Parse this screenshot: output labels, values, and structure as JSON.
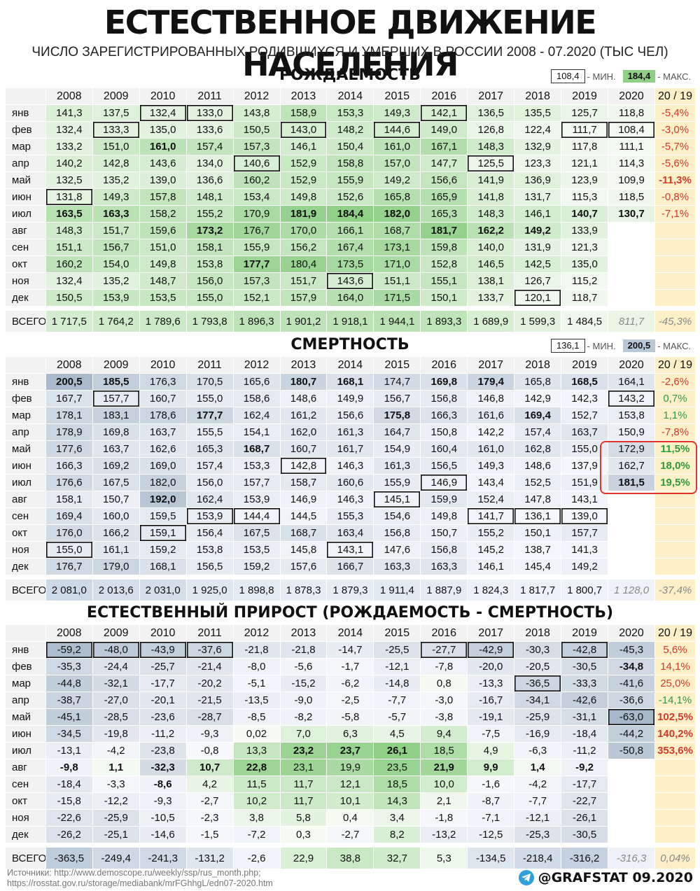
{
  "header": {
    "title": "ЕСТЕСТВЕННОЕ ДВИЖЕНИЕ НАСЕЛЕНИЯ",
    "subtitle": "ЧИСЛО ЗАРЕГИСТРИРОВАННЫХ РОДИВШИХСЯ И УМЕРШИХ В РОССИИ 2008 - 07.2020 (ТЫС ЧЕЛ)"
  },
  "footer": {
    "sources_1": "Источники: http://www.demoscope.ru/weekly/ssp/rus_month.php;",
    "sources_2": "https://rosstat.gov.ru/storage/mediabank/mrFGhhgL/edn07-2020.htm",
    "brand": "@GRAFSTAT 09.2020"
  },
  "colors": {
    "green_max": "#8fcf86",
    "blue_max": "#a9b9cb",
    "change_bg": "#fdf0c8",
    "negative": "#d23a2a",
    "positive": "#2e9a3c",
    "frame_red": "#e0352b"
  },
  "chart_data": [
    {
      "type": "table",
      "title": "РОЖДАЕМОСТЬ",
      "legend": {
        "min_value": "108,4",
        "min_label": "- МИН.",
        "max_value": "184,4",
        "max_label": "- МАКС."
      },
      "columns": [
        "2008",
        "2009",
        "2010",
        "2011",
        "2012",
        "2013",
        "2014",
        "2015",
        "2016",
        "2017",
        "2018",
        "2019",
        "2020",
        "20 / 19"
      ],
      "rows": [
        {
          "label": "янв",
          "values": [
            "141,3",
            "137,5",
            "132,4",
            "133,0",
            "143,8",
            "158,9",
            "153,3",
            "149,3",
            "142,1",
            "136,5",
            "135,5",
            "125,7",
            "118,8",
            "-5,4%"
          ]
        },
        {
          "label": "фев",
          "values": [
            "132,4",
            "133,3",
            "135,0",
            "133,6",
            "150,5",
            "143,0",
            "148,2",
            "144,6",
            "149,0",
            "126,8",
            "122,4",
            "111,7",
            "108,4",
            "-3,0%"
          ]
        },
        {
          "label": "мар",
          "values": [
            "133,2",
            "151,0",
            "161,0",
            "157,4",
            "157,3",
            "146,1",
            "150,4",
            "161,0",
            "167,1",
            "148,3",
            "132,9",
            "117,8",
            "111,1",
            "-5,7%"
          ]
        },
        {
          "label": "апр",
          "values": [
            "140,2",
            "142,8",
            "143,6",
            "134,0",
            "140,6",
            "152,9",
            "158,8",
            "157,0",
            "147,7",
            "125,5",
            "123,3",
            "121,1",
            "114,3",
            "-5,6%"
          ]
        },
        {
          "label": "май",
          "values": [
            "132,5",
            "135,2",
            "139,0",
            "136,6",
            "160,2",
            "152,9",
            "155,9",
            "149,2",
            "156,6",
            "141,9",
            "136,9",
            "123,9",
            "109,9",
            "-11,3%"
          ]
        },
        {
          "label": "июн",
          "values": [
            "131,8",
            "149,3",
            "157,8",
            "148,1",
            "153,4",
            "149,8",
            "152,6",
            "165,8",
            "165,9",
            "141,8",
            "131,7",
            "115,3",
            "118,5",
            "-0,8%"
          ]
        },
        {
          "label": "июл",
          "values": [
            "163,5",
            "163,3",
            "158,2",
            "155,2",
            "170,9",
            "181,9",
            "184,4",
            "182,0",
            "165,3",
            "148,3",
            "146,1",
            "140,7",
            "130,7",
            "-7,1%"
          ]
        },
        {
          "label": "авг",
          "values": [
            "148,3",
            "151,7",
            "159,6",
            "173,2",
            "176,7",
            "170,0",
            "166,1",
            "168,7",
            "181,7",
            "162,2",
            "149,2",
            "133,9",
            "",
            ""
          ]
        },
        {
          "label": "сен",
          "values": [
            "151,1",
            "156,7",
            "151,0",
            "158,1",
            "155,9",
            "156,2",
            "167,4",
            "173,1",
            "159,8",
            "140,0",
            "131,9",
            "121,3",
            "",
            ""
          ]
        },
        {
          "label": "окт",
          "values": [
            "160,2",
            "154,0",
            "149,8",
            "153,8",
            "177,7",
            "180,4",
            "173,5",
            "171,0",
            "152,8",
            "146,5",
            "142,5",
            "135,0",
            "",
            ""
          ]
        },
        {
          "label": "ноя",
          "values": [
            "132,4",
            "135,2",
            "148,7",
            "156,0",
            "157,3",
            "151,7",
            "143,6",
            "151,1",
            "155,1",
            "138,1",
            "126,7",
            "115,2",
            "",
            ""
          ]
        },
        {
          "label": "дек",
          "values": [
            "150,5",
            "153,9",
            "153,5",
            "155,0",
            "152,1",
            "157,9",
            "164,0",
            "171,5",
            "150,1",
            "133,7",
            "120,1",
            "118,7",
            "",
            ""
          ]
        }
      ],
      "total": {
        "label": "ВСЕГО",
        "values": [
          "1 717,5",
          "1 764,2",
          "1 789,6",
          "1 793,8",
          "1 896,3",
          "1 901,2",
          "1 918,1",
          "1 944,1",
          "1 893,3",
          "1 689,9",
          "1 599,3",
          "1 484,5",
          "811,7",
          "-45,3%"
        ]
      }
    },
    {
      "type": "table",
      "title": "СМЕРТНОСТЬ",
      "legend": {
        "min_value": "136,1",
        "min_label": "- МИН.",
        "max_value": "200,5",
        "max_label": "- МАКС."
      },
      "columns": [
        "2008",
        "2009",
        "2010",
        "2011",
        "2012",
        "2013",
        "2014",
        "2015",
        "2016",
        "2017",
        "2018",
        "2019",
        "2020",
        "20 / 19"
      ],
      "rows": [
        {
          "label": "янв",
          "values": [
            "200,5",
            "185,5",
            "176,3",
            "170,5",
            "165,6",
            "180,7",
            "168,1",
            "174,7",
            "169,8",
            "179,4",
            "165,8",
            "168,5",
            "164,1",
            "-2,6%"
          ]
        },
        {
          "label": "фев",
          "values": [
            "167,7",
            "157,7",
            "160,7",
            "155,0",
            "158,6",
            "148,6",
            "149,9",
            "156,7",
            "156,8",
            "146,8",
            "142,9",
            "142,3",
            "143,2",
            "0,7%"
          ]
        },
        {
          "label": "мар",
          "values": [
            "178,1",
            "183,1",
            "178,6",
            "177,7",
            "162,4",
            "161,2",
            "156,6",
            "175,8",
            "166,3",
            "161,6",
            "169,4",
            "152,7",
            "153,8",
            "1,1%"
          ]
        },
        {
          "label": "апр",
          "values": [
            "178,9",
            "169,8",
            "163,7",
            "155,5",
            "154,1",
            "162,0",
            "161,3",
            "164,7",
            "150,8",
            "142,2",
            "157,4",
            "163,7",
            "150,9",
            "-7,8%"
          ]
        },
        {
          "label": "май",
          "values": [
            "177,6",
            "163,7",
            "162,6",
            "165,3",
            "168,7",
            "160,7",
            "161,7",
            "154,9",
            "160,4",
            "161,0",
            "162,8",
            "155,0",
            "172,9",
            "11,5%"
          ]
        },
        {
          "label": "июн",
          "values": [
            "166,3",
            "169,2",
            "169,0",
            "157,4",
            "153,3",
            "142,8",
            "146,3",
            "161,3",
            "156,5",
            "149,3",
            "148,6",
            "137,9",
            "162,7",
            "18,0%"
          ]
        },
        {
          "label": "июл",
          "values": [
            "176,6",
            "167,5",
            "182,0",
            "156,0",
            "157,7",
            "158,7",
            "160,6",
            "155,9",
            "146,9",
            "143,4",
            "152,5",
            "151,9",
            "181,5",
            "19,5%"
          ]
        },
        {
          "label": "авг",
          "values": [
            "158,1",
            "150,7",
            "192,0",
            "162,4",
            "153,9",
            "146,9",
            "146,3",
            "145,1",
            "159,9",
            "152,4",
            "147,8",
            "143,1",
            "",
            ""
          ]
        },
        {
          "label": "сен",
          "values": [
            "169,4",
            "160,0",
            "159,5",
            "153,9",
            "144,4",
            "144,5",
            "155,3",
            "154,6",
            "149,8",
            "141,7",
            "136,1",
            "139,0",
            "",
            ""
          ]
        },
        {
          "label": "окт",
          "values": [
            "176,0",
            "166,2",
            "159,1",
            "156,4",
            "167,5",
            "168,7",
            "163,4",
            "156,8",
            "150,7",
            "155,2",
            "150,1",
            "157,7",
            "",
            ""
          ]
        },
        {
          "label": "ноя",
          "values": [
            "155,0",
            "161,1",
            "159,2",
            "153,8",
            "153,5",
            "145,8",
            "143,1",
            "147,6",
            "156,8",
            "145,2",
            "138,7",
            "141,3",
            "",
            ""
          ]
        },
        {
          "label": "дек",
          "values": [
            "176,7",
            "179,0",
            "168,1",
            "156,5",
            "159,2",
            "157,6",
            "166,7",
            "163,3",
            "163,3",
            "146,1",
            "145,4",
            "149,2",
            "",
            ""
          ]
        }
      ],
      "total": {
        "label": "ВСЕГО",
        "values": [
          "2 081,0",
          "2 013,6",
          "2 031,0",
          "1 925,0",
          "1 898,8",
          "1 878,3",
          "1 879,3",
          "1 911,4",
          "1 887,9",
          "1 824,3",
          "1 817,7",
          "1 800,7",
          "1 128,0",
          "-37,4%"
        ]
      }
    },
    {
      "type": "table",
      "title": "ЕСТЕСТВЕННЫЙ ПРИРОСТ (РОЖДАЕМОСТЬ - СМЕРТНОСТЬ)",
      "columns": [
        "2008",
        "2009",
        "2010",
        "2011",
        "2012",
        "2013",
        "2014",
        "2015",
        "2016",
        "2017",
        "2018",
        "2019",
        "2020",
        "20 / 19"
      ],
      "rows": [
        {
          "label": "янв",
          "values": [
            "-59,2",
            "-48,0",
            "-43,9",
            "-37,6",
            "-21,8",
            "-21,8",
            "-14,7",
            "-25,5",
            "-27,7",
            "-42,9",
            "-30,3",
            "-42,8",
            "-45,3",
            "5,6%"
          ]
        },
        {
          "label": "фев",
          "values": [
            "-35,3",
            "-24,4",
            "-25,7",
            "-21,4",
            "-8,0",
            "-5,6",
            "-1,7",
            "-12,1",
            "-7,8",
            "-20,0",
            "-20,5",
            "-30,5",
            "-34,8",
            "14,1%"
          ]
        },
        {
          "label": "мар",
          "values": [
            "-44,8",
            "-32,1",
            "-17,7",
            "-20,2",
            "-5,1",
            "-15,2",
            "-6,2",
            "-14,8",
            "0,8",
            "-13,3",
            "-36,5",
            "-33,3",
            "-41,6",
            "25,0%"
          ]
        },
        {
          "label": "апр",
          "values": [
            "-38,7",
            "-27,0",
            "-20,1",
            "-21,5",
            "-13,5",
            "-9,0",
            "-2,5",
            "-7,7",
            "-3,0",
            "-16,7",
            "-34,1",
            "-42,6",
            "-36,6",
            "-14,1%"
          ]
        },
        {
          "label": "май",
          "values": [
            "-45,1",
            "-28,5",
            "-23,6",
            "-28,7",
            "-8,5",
            "-8,2",
            "-5,8",
            "-5,7",
            "-3,8",
            "-19,1",
            "-25,9",
            "-31,1",
            "-63,0",
            "102,5%"
          ]
        },
        {
          "label": "июн",
          "values": [
            "-34,5",
            "-19,8",
            "-11,2",
            "-9,3",
            "0,02",
            "7,0",
            "6,3",
            "4,5",
            "9,4",
            "-7,5",
            "-16,9",
            "-18,4",
            "-44,2",
            "140,2%"
          ]
        },
        {
          "label": "июл",
          "values": [
            "-13,1",
            "-4,2",
            "-23,8",
            "-0,8",
            "13,3",
            "23,2",
            "23,7",
            "26,1",
            "18,5",
            "4,9",
            "-6,3",
            "-11,2",
            "-50,8",
            "353,6%"
          ]
        },
        {
          "label": "авг",
          "values": [
            "-9,8",
            "1,1",
            "-32,3",
            "10,7",
            "22,8",
            "23,1",
            "19,9",
            "23,5",
            "21,9",
            "9,9",
            "1,4",
            "-9,2",
            "",
            ""
          ]
        },
        {
          "label": "сен",
          "values": [
            "-18,4",
            "-3,3",
            "-8,6",
            "4,2",
            "11,5",
            "11,7",
            "12,1",
            "18,5",
            "10,0",
            "-1,6",
            "-4,2",
            "-17,7",
            "",
            ""
          ]
        },
        {
          "label": "окт",
          "values": [
            "-15,8",
            "-12,2",
            "-9,3",
            "-2,7",
            "10,2",
            "11,7",
            "10,1",
            "14,3",
            "2,1",
            "-8,7",
            "-7,7",
            "-22,7",
            "",
            ""
          ]
        },
        {
          "label": "ноя",
          "values": [
            "-22,6",
            "-25,9",
            "-10,5",
            "-2,3",
            "3,8",
            "5,8",
            "0,4",
            "3,4",
            "-1,8",
            "-7,1",
            "-12,1",
            "-26,1",
            "",
            ""
          ]
        },
        {
          "label": "дек",
          "values": [
            "-26,2",
            "-25,1",
            "-14,6",
            "-1,5",
            "-7,2",
            "0,3",
            "-2,7",
            "8,2",
            "-13,2",
            "-12,5",
            "-25,3",
            "-30,5",
            "",
            ""
          ]
        }
      ],
      "total": {
        "label": "ВСЕГО",
        "values": [
          "-363,5",
          "-249,4",
          "-241,3",
          "-131,2",
          "-2,6",
          "22,9",
          "38,8",
          "32,7",
          "5,3",
          "-134,5",
          "-218,4",
          "-316,2",
          "-316,3",
          "0,04%"
        ]
      }
    }
  ]
}
